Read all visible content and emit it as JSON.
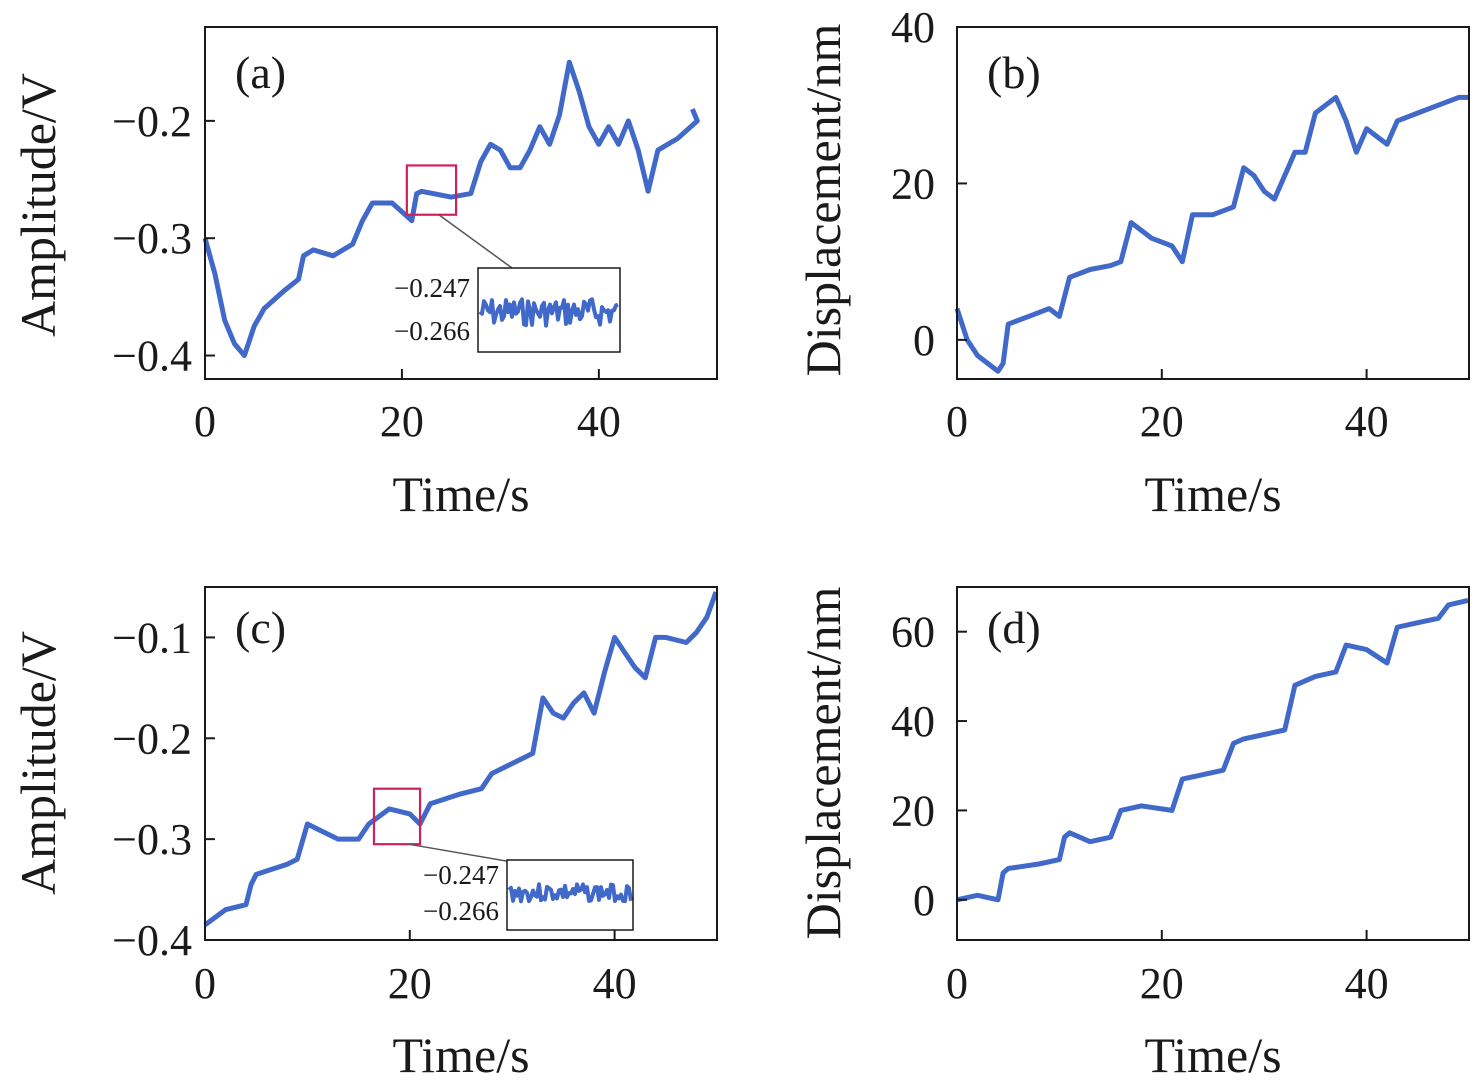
{
  "colors": {
    "series": "#4169c9",
    "highlight": "#d0205a",
    "axis": "#1a1a1a"
  },
  "chart_data": [
    {
      "type": "line",
      "panel_label": "(a)",
      "xlabel": "Time/s",
      "ylabel": "Amplitude/V",
      "xlim": [
        0,
        52
      ],
      "ylim": [
        -0.42,
        -0.12
      ],
      "xticks": [
        0,
        20,
        40
      ],
      "yticks": [
        -0.4,
        -0.3,
        -0.2
      ],
      "xtick_labels": [
        "0",
        "20",
        "40"
      ],
      "ytick_labels": [
        "−0.4",
        "−0.3",
        "−0.2"
      ],
      "x": [
        0,
        1,
        2,
        3,
        4,
        5,
        6,
        8,
        9.5,
        10,
        11,
        13,
        15,
        16,
        17,
        19,
        21,
        21.5,
        22,
        25,
        27,
        28,
        29,
        30,
        31,
        32,
        33,
        34,
        35,
        36,
        37,
        38,
        39,
        40,
        41,
        42,
        43,
        44,
        45,
        46,
        48,
        50,
        49.5
      ],
      "y": [
        -0.3,
        -0.33,
        -0.37,
        -0.39,
        -0.4,
        -0.375,
        -0.36,
        -0.345,
        -0.335,
        -0.315,
        -0.31,
        -0.315,
        -0.305,
        -0.285,
        -0.27,
        -0.27,
        -0.285,
        -0.262,
        -0.26,
        -0.265,
        -0.262,
        -0.235,
        -0.22,
        -0.225,
        -0.24,
        -0.24,
        -0.225,
        -0.205,
        -0.22,
        -0.195,
        -0.15,
        -0.175,
        -0.205,
        -0.22,
        -0.205,
        -0.22,
        -0.2,
        -0.225,
        -0.26,
        -0.225,
        -0.215,
        -0.2,
        -0.19
      ],
      "inset": {
        "ytick_labels": [
          "−0.247",
          "−0.266"
        ],
        "highlight_x": [
          20.5,
          25.5
        ],
        "highlight_y": [
          -0.28,
          -0.238
        ]
      }
    },
    {
      "type": "line",
      "panel_label": "(b)",
      "xlabel": "Time/s",
      "ylabel": "Displacement/nm",
      "xlim": [
        0,
        50
      ],
      "ylim": [
        -5,
        40
      ],
      "xticks": [
        0,
        20,
        40
      ],
      "yticks": [
        0,
        20,
        40
      ],
      "xtick_labels": [
        "0",
        "20",
        "40"
      ],
      "ytick_labels": [
        "0",
        "20",
        "40"
      ],
      "x": [
        0,
        1,
        2,
        3,
        4,
        4.5,
        5,
        7,
        9,
        10,
        11,
        13,
        15,
        16,
        17,
        19,
        21,
        22,
        23,
        25,
        27,
        28,
        29,
        30,
        31,
        32,
        33,
        34,
        35,
        36,
        37,
        38,
        39,
        40,
        41,
        42,
        43,
        45,
        47,
        49,
        50
      ],
      "y": [
        4,
        0,
        -2,
        -3,
        -4,
        -3,
        2,
        3,
        4,
        3,
        8,
        9,
        9.5,
        10,
        15,
        13,
        12,
        10,
        16,
        16,
        17,
        22,
        21,
        19,
        18,
        21,
        24,
        24,
        29,
        30,
        31,
        28,
        24,
        27,
        26,
        25,
        28,
        29,
        30,
        31,
        31
      ]
    },
    {
      "type": "line",
      "panel_label": "(c)",
      "xlabel": "Time/s",
      "ylabel": "Amplitude/V",
      "xlim": [
        0,
        50
      ],
      "ylim": [
        -0.4,
        -0.05
      ],
      "xticks": [
        0,
        20,
        40
      ],
      "yticks": [
        -0.4,
        -0.3,
        -0.2,
        -0.1
      ],
      "xtick_labels": [
        "0",
        "20",
        "40"
      ],
      "ytick_labels": [
        "−0.4",
        "−0.3",
        "−0.2",
        "−0.1"
      ],
      "x": [
        0,
        2,
        4,
        4.5,
        5,
        8,
        9,
        10,
        11,
        13,
        15,
        16,
        18,
        20,
        21,
        22,
        25,
        27,
        28,
        30,
        32,
        33,
        34,
        35,
        36,
        37,
        38,
        39,
        40,
        41,
        42,
        43,
        44,
        45,
        47,
        48,
        49,
        50
      ],
      "y": [
        -0.385,
        -0.37,
        -0.365,
        -0.345,
        -0.335,
        -0.325,
        -0.32,
        -0.285,
        -0.29,
        -0.3,
        -0.3,
        -0.285,
        -0.27,
        -0.275,
        -0.285,
        -0.265,
        -0.255,
        -0.25,
        -0.235,
        -0.225,
        -0.215,
        -0.16,
        -0.175,
        -0.18,
        -0.165,
        -0.155,
        -0.175,
        -0.135,
        -0.1,
        -0.115,
        -0.13,
        -0.14,
        -0.1,
        -0.1,
        -0.105,
        -0.095,
        -0.08,
        -0.055
      ]
    },
    {
      "type": "line",
      "panel_label": "(d)",
      "xlabel": "Time/s",
      "ylabel": "Displacement/nm",
      "xlim": [
        0,
        50
      ],
      "ylim": [
        -9,
        70
      ],
      "xticks": [
        0,
        20,
        40
      ],
      "yticks": [
        0,
        20,
        40,
        60
      ],
      "xtick_labels": [
        "0",
        "20",
        "40"
      ],
      "ytick_labels": [
        "0",
        "20",
        "40",
        "60"
      ],
      "x": [
        0,
        2,
        4,
        4.5,
        5,
        8,
        10,
        10.5,
        11,
        13,
        15,
        16,
        18,
        21,
        22,
        24,
        26,
        27,
        28,
        30,
        32,
        33,
        35,
        37,
        38,
        40,
        42,
        43,
        45,
        47,
        48,
        50
      ],
      "y": [
        0,
        1,
        0,
        6,
        7,
        8,
        9,
        14,
        15,
        13,
        14,
        20,
        21,
        20,
        27,
        28,
        29,
        35,
        36,
        37,
        38,
        48,
        50,
        51,
        57,
        56,
        53,
        61,
        62,
        63,
        66,
        67
      ]
    }
  ]
}
